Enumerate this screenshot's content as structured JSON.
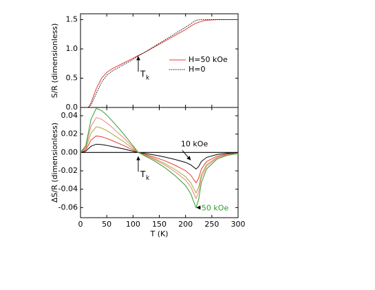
{
  "chart_data": [
    {
      "type": "line",
      "ylabel": "S/R (dimensionless)",
      "xlim": [
        0,
        300
      ],
      "xticks": [
        0,
        50,
        100,
        150,
        200,
        250,
        300
      ],
      "ylim": [
        0,
        1.6
      ],
      "yticks": [
        {
          "value": 0,
          "label": "0.0"
        },
        0.5,
        {
          "value": 1,
          "label": "1.0"
        },
        1.5
      ],
      "x": [
        0,
        10,
        15,
        20,
        30,
        40,
        50,
        60,
        80,
        100,
        110,
        120,
        140,
        160,
        180,
        200,
        210,
        220,
        230,
        240,
        260,
        300
      ],
      "series": [
        {
          "name": "H=50 kOe",
          "color": "#e8383b",
          "dash": "solid",
          "values": [
            0,
            0,
            0,
            0.08,
            0.32,
            0.5,
            0.6,
            0.66,
            0.75,
            0.84,
            0.89,
            0.93,
            1.03,
            1.13,
            1.23,
            1.33,
            1.39,
            1.44,
            1.47,
            1.49,
            1.5,
            1.5
          ]
        },
        {
          "name": "H=0",
          "color": "#000000",
          "dash": "dotted",
          "values": [
            0,
            0,
            0,
            0.04,
            0.24,
            0.43,
            0.55,
            0.62,
            0.72,
            0.82,
            0.88,
            0.93,
            1.04,
            1.15,
            1.26,
            1.37,
            1.43,
            1.49,
            1.5,
            1.5,
            1.5,
            1.5
          ]
        }
      ],
      "legend": "right",
      "annotation": {
        "text": "T",
        "subscript": "k",
        "x": 110
      }
    },
    {
      "type": "line",
      "xlabel": "T (K)",
      "ylabel": "ΔS/R (dimensionless)",
      "xlim": [
        0,
        300
      ],
      "xticks": [
        0,
        50,
        100,
        150,
        200,
        250,
        300
      ],
      "ylim": [
        -0.071,
        0.049
      ],
      "yticks": [
        -0.06,
        -0.04,
        -0.02,
        {
          "value": 0,
          "label": "0.00"
        },
        0.02,
        0.04
      ],
      "zero_line": true,
      "x": [
        0,
        10,
        20,
        30,
        40,
        50,
        60,
        80,
        100,
        110,
        120,
        140,
        160,
        180,
        200,
        210,
        215,
        220,
        225,
        230,
        240,
        260,
        280,
        300
      ],
      "series": [
        {
          "name": "10 kOe",
          "color": "#000000",
          "values": [
            0,
            0.0014,
            0.0068,
            0.009,
            0.0086,
            0.0077,
            0.0065,
            0.0041,
            0.0014,
            0,
            -0.0009,
            -0.0027,
            -0.0049,
            -0.0076,
            -0.0108,
            -0.0135,
            -0.0158,
            -0.018,
            -0.0153,
            -0.0099,
            -0.0054,
            -0.0022,
            -0.0009,
            -0.0004
          ]
        },
        {
          "color": "#e8383b",
          "values": [
            0,
            0.0027,
            0.0135,
            0.018,
            0.0171,
            0.0153,
            0.013,
            0.0081,
            0.0027,
            0,
            -0.0017,
            -0.005,
            -0.0089,
            -0.0139,
            -0.0198,
            -0.0248,
            -0.029,
            -0.033,
            -0.028,
            -0.0182,
            -0.0099,
            -0.004,
            -0.0017,
            -0.0007
          ]
        },
        {
          "color": "#a8a832",
          "values": [
            0,
            0.0042,
            0.021,
            0.028,
            0.0266,
            0.0238,
            0.0202,
            0.0126,
            0.0042,
            0,
            -0.0022,
            -0.0066,
            -0.0119,
            -0.0185,
            -0.0264,
            -0.033,
            -0.0387,
            -0.044,
            -0.0374,
            -0.0242,
            -0.0132,
            -0.0053,
            -0.0022,
            -0.0009
          ]
        },
        {
          "color": "#f08080",
          "values": [
            0,
            0.0057,
            0.0285,
            0.038,
            0.0361,
            0.0323,
            0.0274,
            0.0171,
            0.0057,
            0,
            -0.0025,
            -0.0075,
            -0.0135,
            -0.021,
            -0.03,
            -0.0375,
            -0.044,
            -0.05,
            -0.0425,
            -0.0275,
            -0.015,
            -0.006,
            -0.0025,
            -0.001
          ]
        },
        {
          "name": "50 kOe",
          "color": "#2e9a2e",
          "values": [
            0,
            0.0072,
            0.036,
            0.048,
            0.0456,
            0.0408,
            0.0346,
            0.0216,
            0.0072,
            0,
            -0.003,
            -0.009,
            -0.0162,
            -0.0252,
            -0.036,
            -0.045,
            -0.0528,
            -0.06,
            -0.051,
            -0.033,
            -0.018,
            -0.0072,
            -0.003,
            -0.0012
          ]
        }
      ],
      "annotation": {
        "text": "T",
        "subscript": "k",
        "x": 110
      }
    }
  ]
}
